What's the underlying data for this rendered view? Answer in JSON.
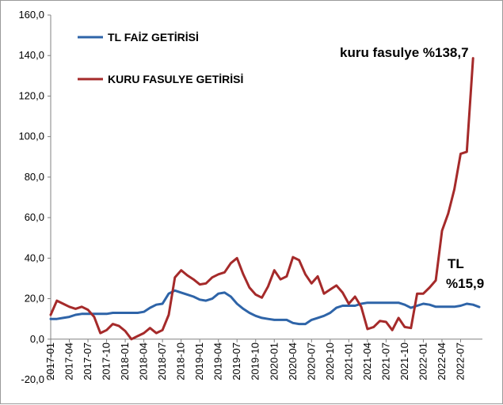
{
  "chart_data": {
    "type": "line",
    "title": "",
    "xlabel": "",
    "ylabel": "",
    "ylim": [
      -20,
      160
    ],
    "yticks": [
      -20,
      0,
      20,
      40,
      60,
      80,
      100,
      120,
      140,
      160
    ],
    "ytick_labels": [
      "-20,0",
      "0,0",
      "20,0",
      "40,0",
      "60,0",
      "80,0",
      "100,0",
      "120,0",
      "140,0",
      "160,0"
    ],
    "x_start": "2017-01",
    "xtick_labels": [
      "2017-01",
      "2017-04",
      "2017-07",
      "2017-10",
      "2018-01",
      "2018-04",
      "2018-07",
      "2018-10",
      "2019-01",
      "2019-04",
      "2019-07",
      "2019-10",
      "2020-01",
      "2020-04",
      "2020-07",
      "2020-10",
      "2021-01",
      "2021-04",
      "2021-07",
      "2021-10",
      "2022-01",
      "2022-04",
      "2022-07"
    ],
    "grid": false,
    "legend_position": "top-left",
    "series": [
      {
        "name": "TL FAİZ GETİRİSİ",
        "color": "#2e64a8",
        "values": [
          10.0,
          10.0,
          10.5,
          11.0,
          12.0,
          12.5,
          12.5,
          12.5,
          12.5,
          12.5,
          13.0,
          13.0,
          13.0,
          13.0,
          13.0,
          13.5,
          15.5,
          17.0,
          17.5,
          22.5,
          24.0,
          23.0,
          22.0,
          21.0,
          19.5,
          19.0,
          20.0,
          22.5,
          23.0,
          21.0,
          17.5,
          15.0,
          13.0,
          11.5,
          10.5,
          10.0,
          9.5,
          9.5,
          9.5,
          8.0,
          7.5,
          7.5,
          9.5,
          10.5,
          11.5,
          13.0,
          15.5,
          16.5,
          16.5,
          16.5,
          17.5,
          18.0,
          18.0,
          18.0,
          18.0,
          18.0,
          18.0,
          17.0,
          15.5,
          16.5,
          17.5,
          17.0,
          16.0,
          16.0,
          16.0,
          16.0,
          16.5,
          17.5,
          17.0,
          15.9
        ]
      },
      {
        "name": "KURU FASULYE GETİRİSİ",
        "color": "#a52a2a",
        "values": [
          12.0,
          19.0,
          17.5,
          16.0,
          15.0,
          16.0,
          14.5,
          11.0,
          3.0,
          4.5,
          7.5,
          6.5,
          4.0,
          0.0,
          1.5,
          3.0,
          5.5,
          3.0,
          4.5,
          12.0,
          30.5,
          34.0,
          31.5,
          29.5,
          27.0,
          27.5,
          30.5,
          32.0,
          33.0,
          37.5,
          40.0,
          32.0,
          25.5,
          22.0,
          20.5,
          26.0,
          34.0,
          29.5,
          31.0,
          40.5,
          39.0,
          32.0,
          27.5,
          31.0,
          22.5,
          24.5,
          26.5,
          23.0,
          17.5,
          21.0,
          16.0,
          5.0,
          6.0,
          9.0,
          8.5,
          4.5,
          10.5,
          6.0,
          5.5,
          22.5,
          22.5,
          25.5,
          29.0,
          53.5,
          62.0,
          74.0,
          91.5,
          92.5,
          138.7
        ]
      }
    ],
    "annotations": [
      {
        "text": "kuru fasulye %138,7"
      },
      {
        "text": "TL"
      },
      {
        "text": "%15,9"
      }
    ]
  }
}
